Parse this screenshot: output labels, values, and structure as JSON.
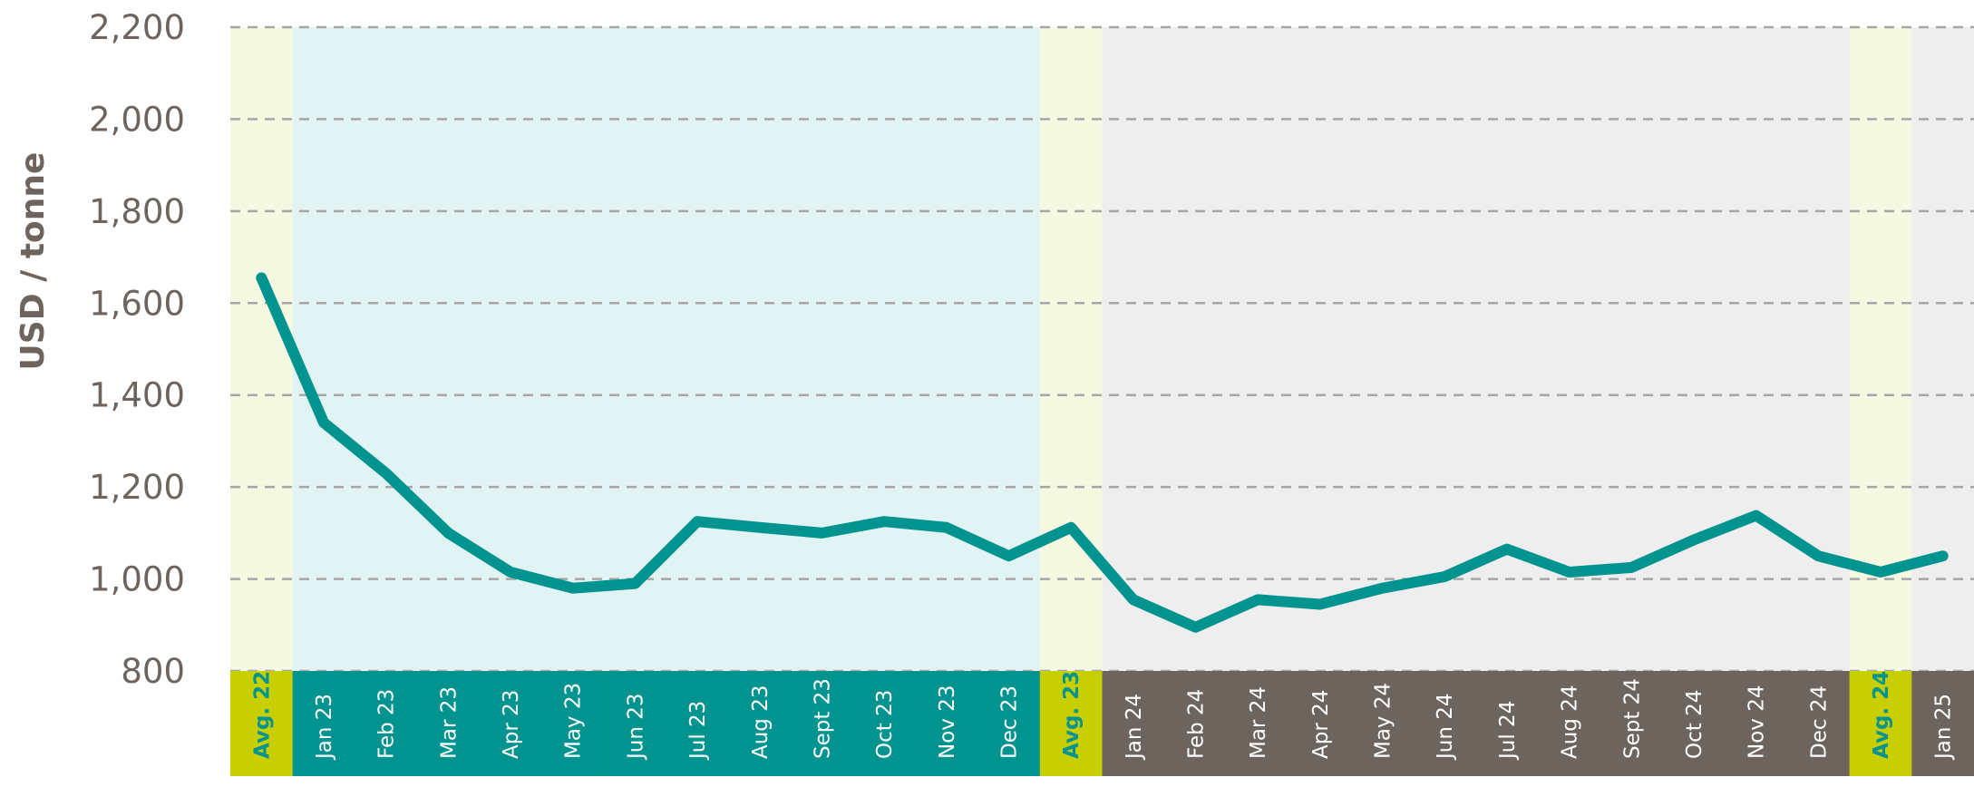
{
  "chart_data": {
    "type": "line",
    "title": "",
    "xlabel": "",
    "ylabel": "USD / tonne",
    "ylim": [
      800,
      2200
    ],
    "yticks": [
      800,
      1000,
      1200,
      1400,
      1600,
      1800,
      2000,
      2200
    ],
    "ytick_labels": [
      "800",
      "1,000",
      "1,200",
      "1,400",
      "1,600",
      "1,800",
      "2,000",
      "2,200"
    ],
    "grid": true,
    "categories": [
      "Avg. 22",
      "Jan 23",
      "Feb 23",
      "Mar 23",
      "Apr 23",
      "May 23",
      "Jun 23",
      "Jul 23",
      "Aug 23",
      "Sept 23",
      "Oct 23",
      "Nov 23",
      "Dec 23",
      "Avg. 23",
      "Jan 24",
      "Feb 24",
      "Mar 24",
      "Apr 24",
      "May 24",
      "Jun 24",
      "Jul 24",
      "Aug 24",
      "Sept 24",
      "Oct 24",
      "Nov 24",
      "Dec 24",
      "Avg. 24",
      "Jan 25"
    ],
    "category_groups": [
      "avg",
      "2023",
      "2023",
      "2023",
      "2023",
      "2023",
      "2023",
      "2023",
      "2023",
      "2023",
      "2023",
      "2023",
      "2023",
      "avg",
      "2024",
      "2024",
      "2024",
      "2024",
      "2024",
      "2024",
      "2024",
      "2024",
      "2024",
      "2024",
      "2024",
      "2024",
      "avg",
      "2025"
    ],
    "values": [
      1655,
      1340,
      1230,
      1100,
      1015,
      980,
      990,
      1125,
      1112,
      1100,
      1125,
      1112,
      1050,
      1112,
      955,
      895,
      955,
      945,
      980,
      1005,
      1065,
      1015,
      1025,
      1085,
      1138,
      1050,
      1015,
      1050
    ],
    "colors": {
      "line": "#00938f",
      "avg_band": "#f6f9e1",
      "avg_label_bg": "#c7cf00",
      "avg_label_text": "#00938f",
      "year_2023_band": "#e2f3f3",
      "year_2023_label_bg": "#00938f",
      "other_band": "#eeeeee",
      "other_label_bg": "#6d645d",
      "axis_text": "#6d645d",
      "grid": "#a6a6a6"
    }
  }
}
